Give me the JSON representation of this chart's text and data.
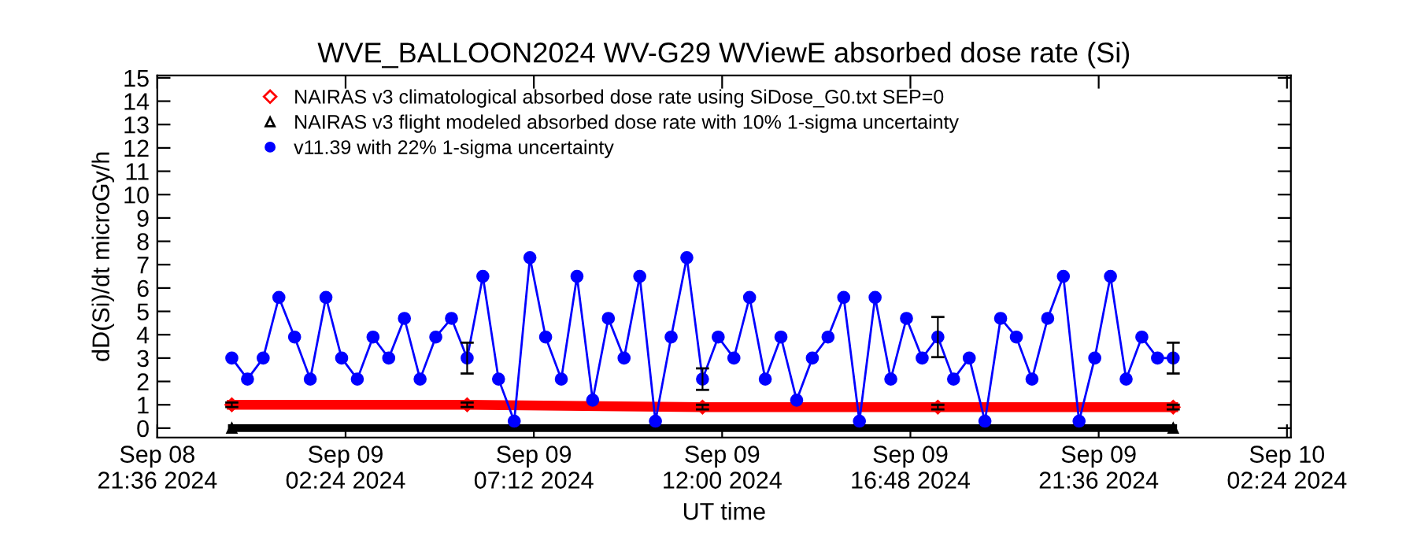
{
  "chart_data": {
    "type": "line",
    "title": "WVE_BALLOON2024 WV-G29 WViewE absorbed dose rate (Si)",
    "xlabel": "UT time",
    "ylabel": "dD(Si)/dt microGy/h",
    "xlim": [
      "2024-09-08T21:36",
      "2024-09-10T02:30"
    ],
    "xticks": [
      {
        "value": "2024-09-08T21:36",
        "label": "Sep 08\n21:36 2024"
      },
      {
        "value": "2024-09-09T02:24",
        "label": "Sep 09\n02:24 2024"
      },
      {
        "value": "2024-09-09T07:12",
        "label": "Sep 09\n07:12 2024"
      },
      {
        "value": "2024-09-09T12:00",
        "label": "Sep 09\n12:00 2024"
      },
      {
        "value": "2024-09-09T16:48",
        "label": "Sep 09\n16:48 2024"
      },
      {
        "value": "2024-09-09T21:36",
        "label": "Sep 09\n21:36 2024"
      },
      {
        "value": "2024-09-10T02:24",
        "label": "Sep 10\n02:24 2024"
      }
    ],
    "ylim": [
      -0.4,
      15.1
    ],
    "yticks": [
      0,
      1,
      2,
      3,
      4,
      5,
      6,
      7,
      8,
      9,
      10,
      11,
      12,
      13,
      14,
      15
    ],
    "grid": false,
    "legend": "top left",
    "series": [
      {
        "name": "NAIRAS v3 climatological absorbed dose rate using SiDose_G0.txt SEP=0",
        "color": "#ff0000",
        "marker": "diamond",
        "x": [
          "2024-09-08T23:30",
          "2024-09-09T05:30",
          "2024-09-09T11:30",
          "2024-09-09T17:30",
          "2024-09-09T23:30"
        ],
        "values": [
          1.0,
          1.0,
          0.9,
          0.9,
          0.9
        ],
        "errors": [
          0.1,
          0.1,
          0.1,
          0.1,
          0.1
        ]
      },
      {
        "name": "NAIRAS v3 flight modeled absorbed dose rate with 10% 1-sigma uncertainty",
        "color": "#000000",
        "marker": "triangle",
        "x": [
          "2024-09-08T23:30",
          "2024-09-09T23:30"
        ],
        "values": [
          0,
          0
        ]
      },
      {
        "name": "v11.39 with 22% 1-sigma uncertainty",
        "color": "#0000ff",
        "marker": "circle",
        "x": [
          "2024-09-08T23:30",
          "2024-09-08T23:54",
          "2024-09-09T00:18",
          "2024-09-09T00:42",
          "2024-09-09T01:06",
          "2024-09-09T01:30",
          "2024-09-09T01:54",
          "2024-09-09T02:18",
          "2024-09-09T02:42",
          "2024-09-09T03:06",
          "2024-09-09T03:30",
          "2024-09-09T03:54",
          "2024-09-09T04:18",
          "2024-09-09T04:42",
          "2024-09-09T05:06",
          "2024-09-09T05:30",
          "2024-09-09T05:54",
          "2024-09-09T06:18",
          "2024-09-09T06:42",
          "2024-09-09T07:06",
          "2024-09-09T07:30",
          "2024-09-09T07:54",
          "2024-09-09T08:18",
          "2024-09-09T08:42",
          "2024-09-09T09:06",
          "2024-09-09T09:30",
          "2024-09-09T09:54",
          "2024-09-09T10:18",
          "2024-09-09T10:42",
          "2024-09-09T11:06",
          "2024-09-09T11:30",
          "2024-09-09T11:54",
          "2024-09-09T12:18",
          "2024-09-09T12:42",
          "2024-09-09T13:06",
          "2024-09-09T13:30",
          "2024-09-09T13:54",
          "2024-09-09T14:18",
          "2024-09-09T14:42",
          "2024-09-09T15:06",
          "2024-09-09T15:30",
          "2024-09-09T15:54",
          "2024-09-09T16:18",
          "2024-09-09T16:42",
          "2024-09-09T17:06",
          "2024-09-09T17:30",
          "2024-09-09T17:54",
          "2024-09-09T18:18",
          "2024-09-09T18:42",
          "2024-09-09T19:06",
          "2024-09-09T19:30",
          "2024-09-09T19:54",
          "2024-09-09T20:18",
          "2024-09-09T20:42",
          "2024-09-09T21:06",
          "2024-09-09T21:30",
          "2024-09-09T21:54",
          "2024-09-09T22:18",
          "2024-09-09T22:42",
          "2024-09-09T23:06",
          "2024-09-09T23:30"
        ],
        "values": [
          3.0,
          2.1,
          3.0,
          5.6,
          3.9,
          2.1,
          5.6,
          3.0,
          2.1,
          3.9,
          3.0,
          4.7,
          2.1,
          3.9,
          4.7,
          3.0,
          6.5,
          2.1,
          0.3,
          7.3,
          3.9,
          2.1,
          6.5,
          1.2,
          4.7,
          3.0,
          6.5,
          0.3,
          3.9,
          7.3,
          2.1,
          3.9,
          3.0,
          5.6,
          2.1,
          3.9,
          1.2,
          3.0,
          3.9,
          5.6,
          0.3,
          5.6,
          2.1,
          4.7,
          3.0,
          3.9,
          2.1,
          3.0,
          0.3,
          4.7,
          3.9,
          2.1,
          4.7,
          6.5,
          0.3,
          3.0,
          6.5,
          2.1,
          3.9,
          3.0,
          3.0
        ],
        "errors": [
          null,
          null,
          null,
          null,
          null,
          null,
          null,
          null,
          null,
          null,
          null,
          null,
          null,
          null,
          null,
          0.66,
          null,
          null,
          null,
          null,
          null,
          null,
          null,
          null,
          null,
          null,
          null,
          null,
          null,
          null,
          0.46,
          null,
          null,
          null,
          null,
          null,
          null,
          null,
          null,
          null,
          null,
          null,
          null,
          null,
          null,
          0.86,
          null,
          null,
          null,
          null,
          null,
          null,
          null,
          null,
          null,
          null,
          null,
          null,
          null,
          null,
          0.66
        ]
      }
    ]
  }
}
